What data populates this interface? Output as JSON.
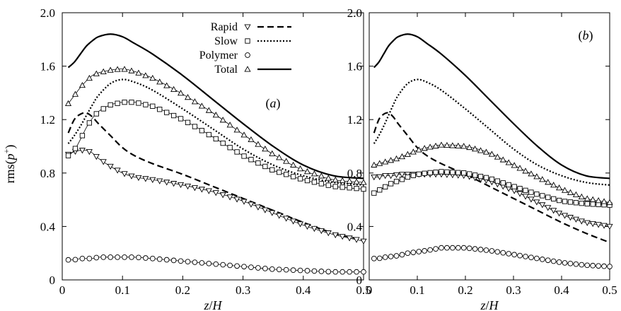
{
  "figure": {
    "ylabel": "rms(p⁺)",
    "xlabel": "z/H",
    "legend_names": [
      "Rapid",
      "Slow",
      "Polymer",
      "Total"
    ]
  },
  "chart_data": [
    {
      "type": "line",
      "panel": "(a)",
      "xlabel": "z/H",
      "ylabel": "rms(p⁺)",
      "xlim": [
        0,
        0.5
      ],
      "ylim": [
        0,
        2.0
      ],
      "xticks": [
        "0",
        "0.1",
        "0.2",
        "0.3",
        "0.4",
        "0.5"
      ],
      "yticks": [
        "0",
        "0.4",
        "0.8",
        "1.2",
        "1.6",
        "2.0"
      ],
      "legend_position": "top-center",
      "x": [
        0.01,
        0.02,
        0.03,
        0.04,
        0.05,
        0.06,
        0.08,
        0.1,
        0.12,
        0.15,
        0.2,
        0.25,
        0.3,
        0.35,
        0.4,
        0.45,
        0.5
      ],
      "series": [
        {
          "name": "Rapid",
          "style": "dashed",
          "values": [
            1.1,
            1.2,
            1.24,
            1.25,
            1.22,
            1.17,
            1.08,
            0.99,
            0.93,
            0.87,
            0.79,
            0.7,
            0.61,
            0.52,
            0.43,
            0.35,
            0.3
          ]
        },
        {
          "name": "Slow",
          "style": "dotted",
          "values": [
            1.02,
            1.08,
            1.15,
            1.23,
            1.31,
            1.38,
            1.47,
            1.5,
            1.48,
            1.42,
            1.28,
            1.13,
            0.98,
            0.86,
            0.78,
            0.73,
            0.71
          ]
        },
        {
          "name": "Total",
          "style": "solid",
          "values": [
            1.59,
            1.63,
            1.69,
            1.75,
            1.79,
            1.82,
            1.84,
            1.82,
            1.77,
            1.69,
            1.53,
            1.35,
            1.17,
            1.0,
            0.86,
            0.78,
            0.76
          ]
        },
        {
          "name": "Rapid",
          "marker": "triangle-down",
          "values": [
            0.94,
            0.96,
            0.97,
            0.97,
            0.95,
            0.91,
            0.85,
            0.8,
            0.77,
            0.75,
            0.71,
            0.66,
            0.59,
            0.5,
            0.41,
            0.34,
            0.29
          ]
        },
        {
          "name": "Slow",
          "marker": "square",
          "values": [
            0.93,
            0.97,
            1.05,
            1.14,
            1.21,
            1.26,
            1.31,
            1.33,
            1.33,
            1.3,
            1.2,
            1.07,
            0.93,
            0.82,
            0.75,
            0.7,
            0.68
          ]
        },
        {
          "name": "Polymer",
          "marker": "circle",
          "values": [
            0.15,
            0.15,
            0.16,
            0.16,
            0.16,
            0.17,
            0.17,
            0.17,
            0.17,
            0.16,
            0.14,
            0.12,
            0.1,
            0.08,
            0.07,
            0.06,
            0.06
          ]
        },
        {
          "name": "Total",
          "marker": "triangle-up",
          "values": [
            1.32,
            1.38,
            1.44,
            1.49,
            1.53,
            1.55,
            1.57,
            1.58,
            1.56,
            1.51,
            1.39,
            1.25,
            1.09,
            0.94,
            0.82,
            0.75,
            0.73
          ]
        }
      ]
    },
    {
      "type": "line",
      "panel": "(b)",
      "xlabel": "z/H",
      "xlim": [
        0,
        0.5
      ],
      "ylim": [
        0,
        2.0
      ],
      "xticks": [
        "0",
        "0.1",
        "0.2",
        "0.3",
        "0.4",
        "0.5"
      ],
      "yticks": [
        "0",
        "0.4",
        "0.8",
        "1.2",
        "1.6",
        "2.0"
      ],
      "x": [
        0.01,
        0.02,
        0.03,
        0.04,
        0.05,
        0.06,
        0.08,
        0.1,
        0.12,
        0.15,
        0.2,
        0.25,
        0.3,
        0.35,
        0.4,
        0.45,
        0.5
      ],
      "series": [
        {
          "name": "Rapid",
          "style": "dashed",
          "values": [
            1.1,
            1.2,
            1.24,
            1.25,
            1.22,
            1.17,
            1.08,
            0.99,
            0.93,
            0.87,
            0.79,
            0.7,
            0.61,
            0.52,
            0.43,
            0.35,
            0.28
          ]
        },
        {
          "name": "Slow",
          "style": "dotted",
          "values": [
            1.02,
            1.08,
            1.15,
            1.23,
            1.31,
            1.38,
            1.47,
            1.5,
            1.48,
            1.42,
            1.28,
            1.13,
            0.98,
            0.86,
            0.78,
            0.73,
            0.71
          ]
        },
        {
          "name": "Total",
          "style": "solid",
          "values": [
            1.59,
            1.63,
            1.69,
            1.75,
            1.79,
            1.82,
            1.84,
            1.82,
            1.77,
            1.69,
            1.53,
            1.35,
            1.17,
            1.0,
            0.86,
            0.78,
            0.76
          ]
        },
        {
          "name": "Rapid",
          "marker": "triangle-down",
          "values": [
            0.77,
            0.77,
            0.78,
            0.78,
            0.78,
            0.79,
            0.79,
            0.79,
            0.79,
            0.79,
            0.78,
            0.74,
            0.67,
            0.58,
            0.49,
            0.43,
            0.4
          ]
        },
        {
          "name": "Slow",
          "marker": "square",
          "values": [
            0.65,
            0.67,
            0.69,
            0.71,
            0.73,
            0.74,
            0.77,
            0.79,
            0.8,
            0.81,
            0.8,
            0.76,
            0.7,
            0.64,
            0.59,
            0.57,
            0.56
          ]
        },
        {
          "name": "Polymer",
          "marker": "circle",
          "values": [
            0.16,
            0.16,
            0.17,
            0.17,
            0.18,
            0.18,
            0.2,
            0.21,
            0.22,
            0.24,
            0.24,
            0.22,
            0.19,
            0.16,
            0.13,
            0.11,
            0.1
          ]
        },
        {
          "name": "Total",
          "marker": "triangle-up",
          "values": [
            0.86,
            0.87,
            0.88,
            0.89,
            0.9,
            0.91,
            0.94,
            0.97,
            0.99,
            1.01,
            1.0,
            0.95,
            0.86,
            0.77,
            0.68,
            0.61,
            0.58
          ]
        }
      ]
    }
  ]
}
